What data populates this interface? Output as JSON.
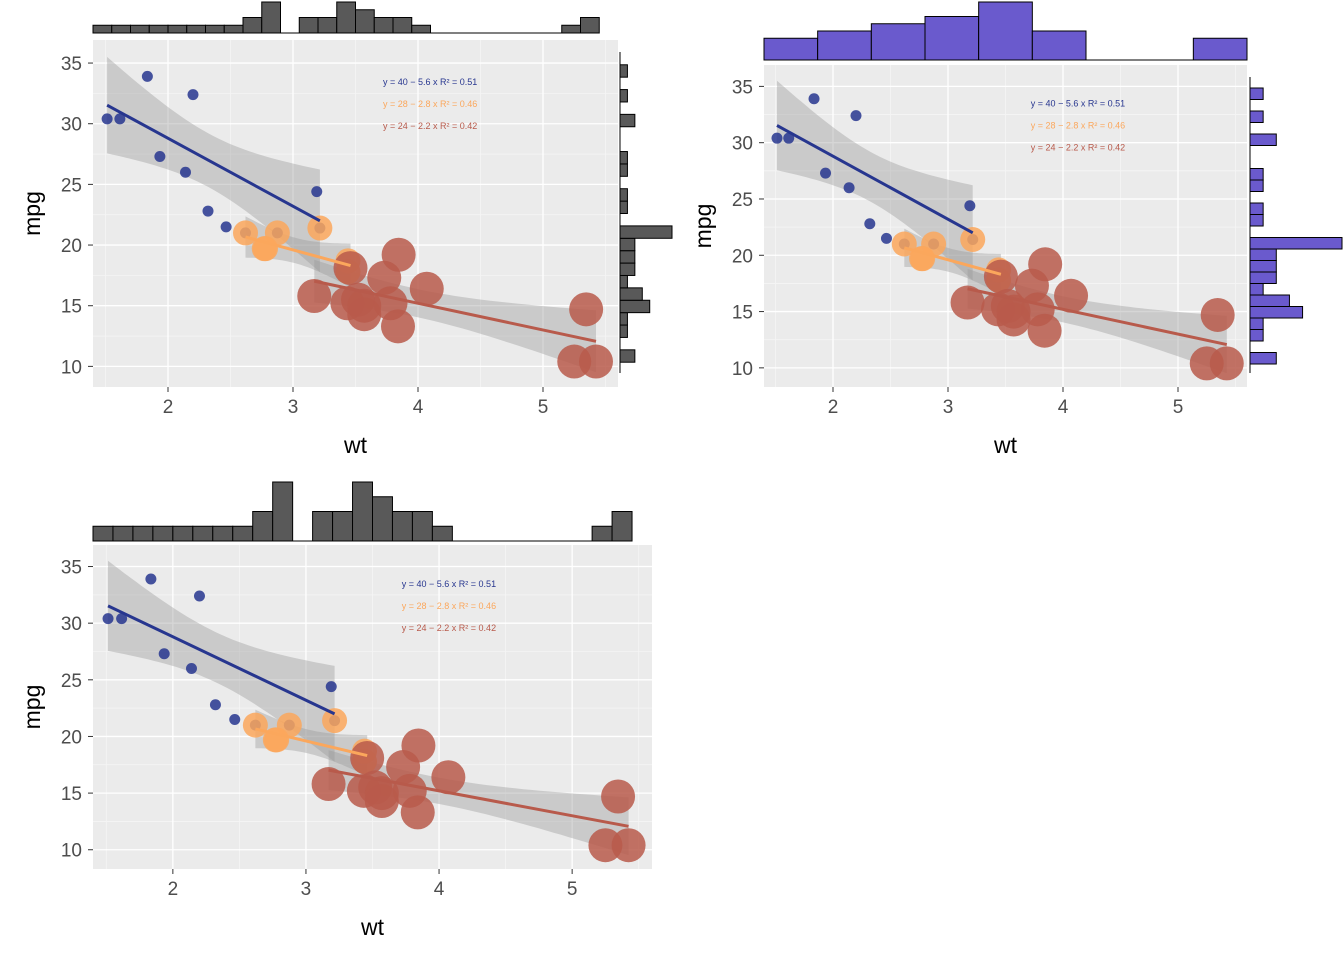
{
  "chart_data": [
    {
      "type": "scatter",
      "xlabel": "wt",
      "ylabel": "mpg",
      "xlim": [
        1.4,
        5.6
      ],
      "ylim": [
        8.3,
        36.9
      ],
      "x_ticks": [
        2,
        3,
        4,
        5
      ],
      "y_ticks": [
        10,
        15,
        20,
        25,
        30,
        35
      ],
      "marginal": {
        "x": "histogram",
        "y": "histogram",
        "fill": "#595959"
      },
      "series": [
        {
          "color": "#27368f",
          "point_size": "small",
          "x": [
            2.62,
            2.875,
            2.32,
            2.2,
            1.615,
            1.835,
            1.935,
            2.14,
            1.513,
            3.19,
            3.215,
            2.465
          ],
          "y": [
            21.0,
            21.0,
            22.8,
            32.4,
            30.4,
            33.9,
            27.3,
            26.0,
            30.4,
            24.4,
            21.4,
            21.5
          ],
          "fit": {
            "intercept": 40,
            "slope": -5.6,
            "x_range": [
              1.513,
              3.215
            ]
          },
          "equation": "y = 40 − 5.6 x    R² = 0.51"
        },
        {
          "color": "#fba75c",
          "point_size": "medium",
          "x": [
            2.62,
            2.875,
            2.77,
            3.44,
            3.44,
            3.215,
            2.78
          ],
          "y": [
            21.0,
            21.0,
            19.7,
            18.7,
            17.8,
            21.4,
            19.7
          ],
          "fit": {
            "intercept": 28,
            "slope": -2.8,
            "x_range": [
              2.62,
              3.46
            ]
          },
          "equation": "y = 28 − 2.8 x    R² = 0.46"
        },
        {
          "color": "#b85a4b",
          "point_size": "large",
          "x": [
            3.46,
            3.57,
            4.07,
            3.73,
            3.78,
            5.25,
            5.424,
            5.345,
            3.52,
            3.435,
            3.84,
            3.845,
            3.17,
            3.57
          ],
          "y": [
            18.1,
            14.3,
            16.4,
            17.3,
            15.2,
            10.4,
            10.4,
            14.7,
            15.5,
            15.2,
            13.3,
            19.2,
            15.8,
            15.0
          ],
          "fit": {
            "intercept": 24,
            "slope": -2.2,
            "x_range": [
              3.17,
              5.424
            ]
          },
          "equation": "y = 24 − 2.2 x    R² = 0.42"
        }
      ]
    },
    {
      "type": "scatter",
      "xlabel": "wt",
      "ylabel": "mpg",
      "xlim": [
        1.4,
        5.6
      ],
      "ylim": [
        8.3,
        36.9
      ],
      "x_ticks": [
        2,
        3,
        4,
        5
      ],
      "y_ticks": [
        10,
        15,
        20,
        25,
        30,
        35
      ],
      "marginal": {
        "x": "histogram",
        "y": "histogram",
        "fill": "#6a5acd"
      },
      "series": [
        {
          "color": "#27368f",
          "point_size": "small",
          "x": [
            2.62,
            2.875,
            2.32,
            2.2,
            1.615,
            1.835,
            1.935,
            2.14,
            1.513,
            3.19,
            3.215,
            2.465
          ],
          "y": [
            21.0,
            21.0,
            22.8,
            32.4,
            30.4,
            33.9,
            27.3,
            26.0,
            30.4,
            24.4,
            21.4,
            21.5
          ],
          "fit": {
            "intercept": 40,
            "slope": -5.6,
            "x_range": [
              1.513,
              3.215
            ]
          },
          "equation": "y = 40 − 5.6 x    R² = 0.51"
        },
        {
          "color": "#fba75c",
          "point_size": "medium",
          "x": [
            2.62,
            2.875,
            2.77,
            3.44,
            3.44,
            3.215,
            2.78
          ],
          "y": [
            21.0,
            21.0,
            19.7,
            18.7,
            17.8,
            21.4,
            19.7
          ],
          "fit": {
            "intercept": 28,
            "slope": -2.8,
            "x_range": [
              2.62,
              3.46
            ]
          },
          "equation": "y = 28 − 2.8 x    R² = 0.46"
        },
        {
          "color": "#b85a4b",
          "point_size": "large",
          "x": [
            3.46,
            3.57,
            4.07,
            3.73,
            3.78,
            5.25,
            5.424,
            5.345,
            3.52,
            3.435,
            3.84,
            3.845,
            3.17,
            3.57
          ],
          "y": [
            18.1,
            14.3,
            16.4,
            17.3,
            15.2,
            10.4,
            10.4,
            14.7,
            15.5,
            15.2,
            13.3,
            19.2,
            15.8,
            15.0
          ],
          "fit": {
            "intercept": 24,
            "slope": -2.2,
            "x_range": [
              3.17,
              5.424
            ]
          },
          "equation": "y = 24 − 2.2 x    R² = 0.42"
        }
      ]
    },
    {
      "type": "scatter",
      "xlabel": "wt",
      "ylabel": "mpg",
      "xlim": [
        1.4,
        5.6
      ],
      "ylim": [
        8.3,
        36.9
      ],
      "x_ticks": [
        2,
        3,
        4,
        5
      ],
      "y_ticks": [
        10,
        15,
        20,
        25,
        30,
        35
      ],
      "marginal": {
        "x": "histogram",
        "fill": "#595959"
      },
      "series": [
        {
          "color": "#27368f",
          "point_size": "small",
          "x": [
            2.62,
            2.875,
            2.32,
            2.2,
            1.615,
            1.835,
            1.935,
            2.14,
            1.513,
            3.19,
            3.215,
            2.465
          ],
          "y": [
            21.0,
            21.0,
            22.8,
            32.4,
            30.4,
            33.9,
            27.3,
            26.0,
            30.4,
            24.4,
            21.4,
            21.5
          ],
          "fit": {
            "intercept": 40,
            "slope": -5.6,
            "x_range": [
              1.513,
              3.215
            ]
          },
          "equation": "y = 40 − 5.6 x    R² = 0.51"
        },
        {
          "color": "#fba75c",
          "point_size": "medium",
          "x": [
            2.62,
            2.875,
            2.77,
            3.44,
            3.44,
            3.215,
            2.78
          ],
          "y": [
            21.0,
            21.0,
            19.7,
            18.7,
            17.8,
            21.4,
            19.7
          ],
          "fit": {
            "intercept": 28,
            "slope": -2.8,
            "x_range": [
              2.62,
              3.46
            ]
          },
          "equation": "y = 28 − 2.8 x    R² = 0.46"
        },
        {
          "color": "#b85a4b",
          "point_size": "large",
          "x": [
            3.46,
            3.57,
            4.07,
            3.73,
            3.78,
            5.25,
            5.424,
            5.345,
            3.52,
            3.435,
            3.84,
            3.845,
            3.17,
            3.57
          ],
          "y": [
            18.1,
            14.3,
            16.4,
            17.3,
            15.2,
            10.4,
            10.4,
            14.7,
            15.5,
            15.2,
            13.3,
            19.2,
            15.8,
            15.0
          ],
          "fit": {
            "intercept": 24,
            "slope": -2.2,
            "x_range": [
              3.17,
              5.424
            ]
          },
          "equation": "y = 24 − 2.2 x    R² = 0.42"
        }
      ]
    }
  ]
}
